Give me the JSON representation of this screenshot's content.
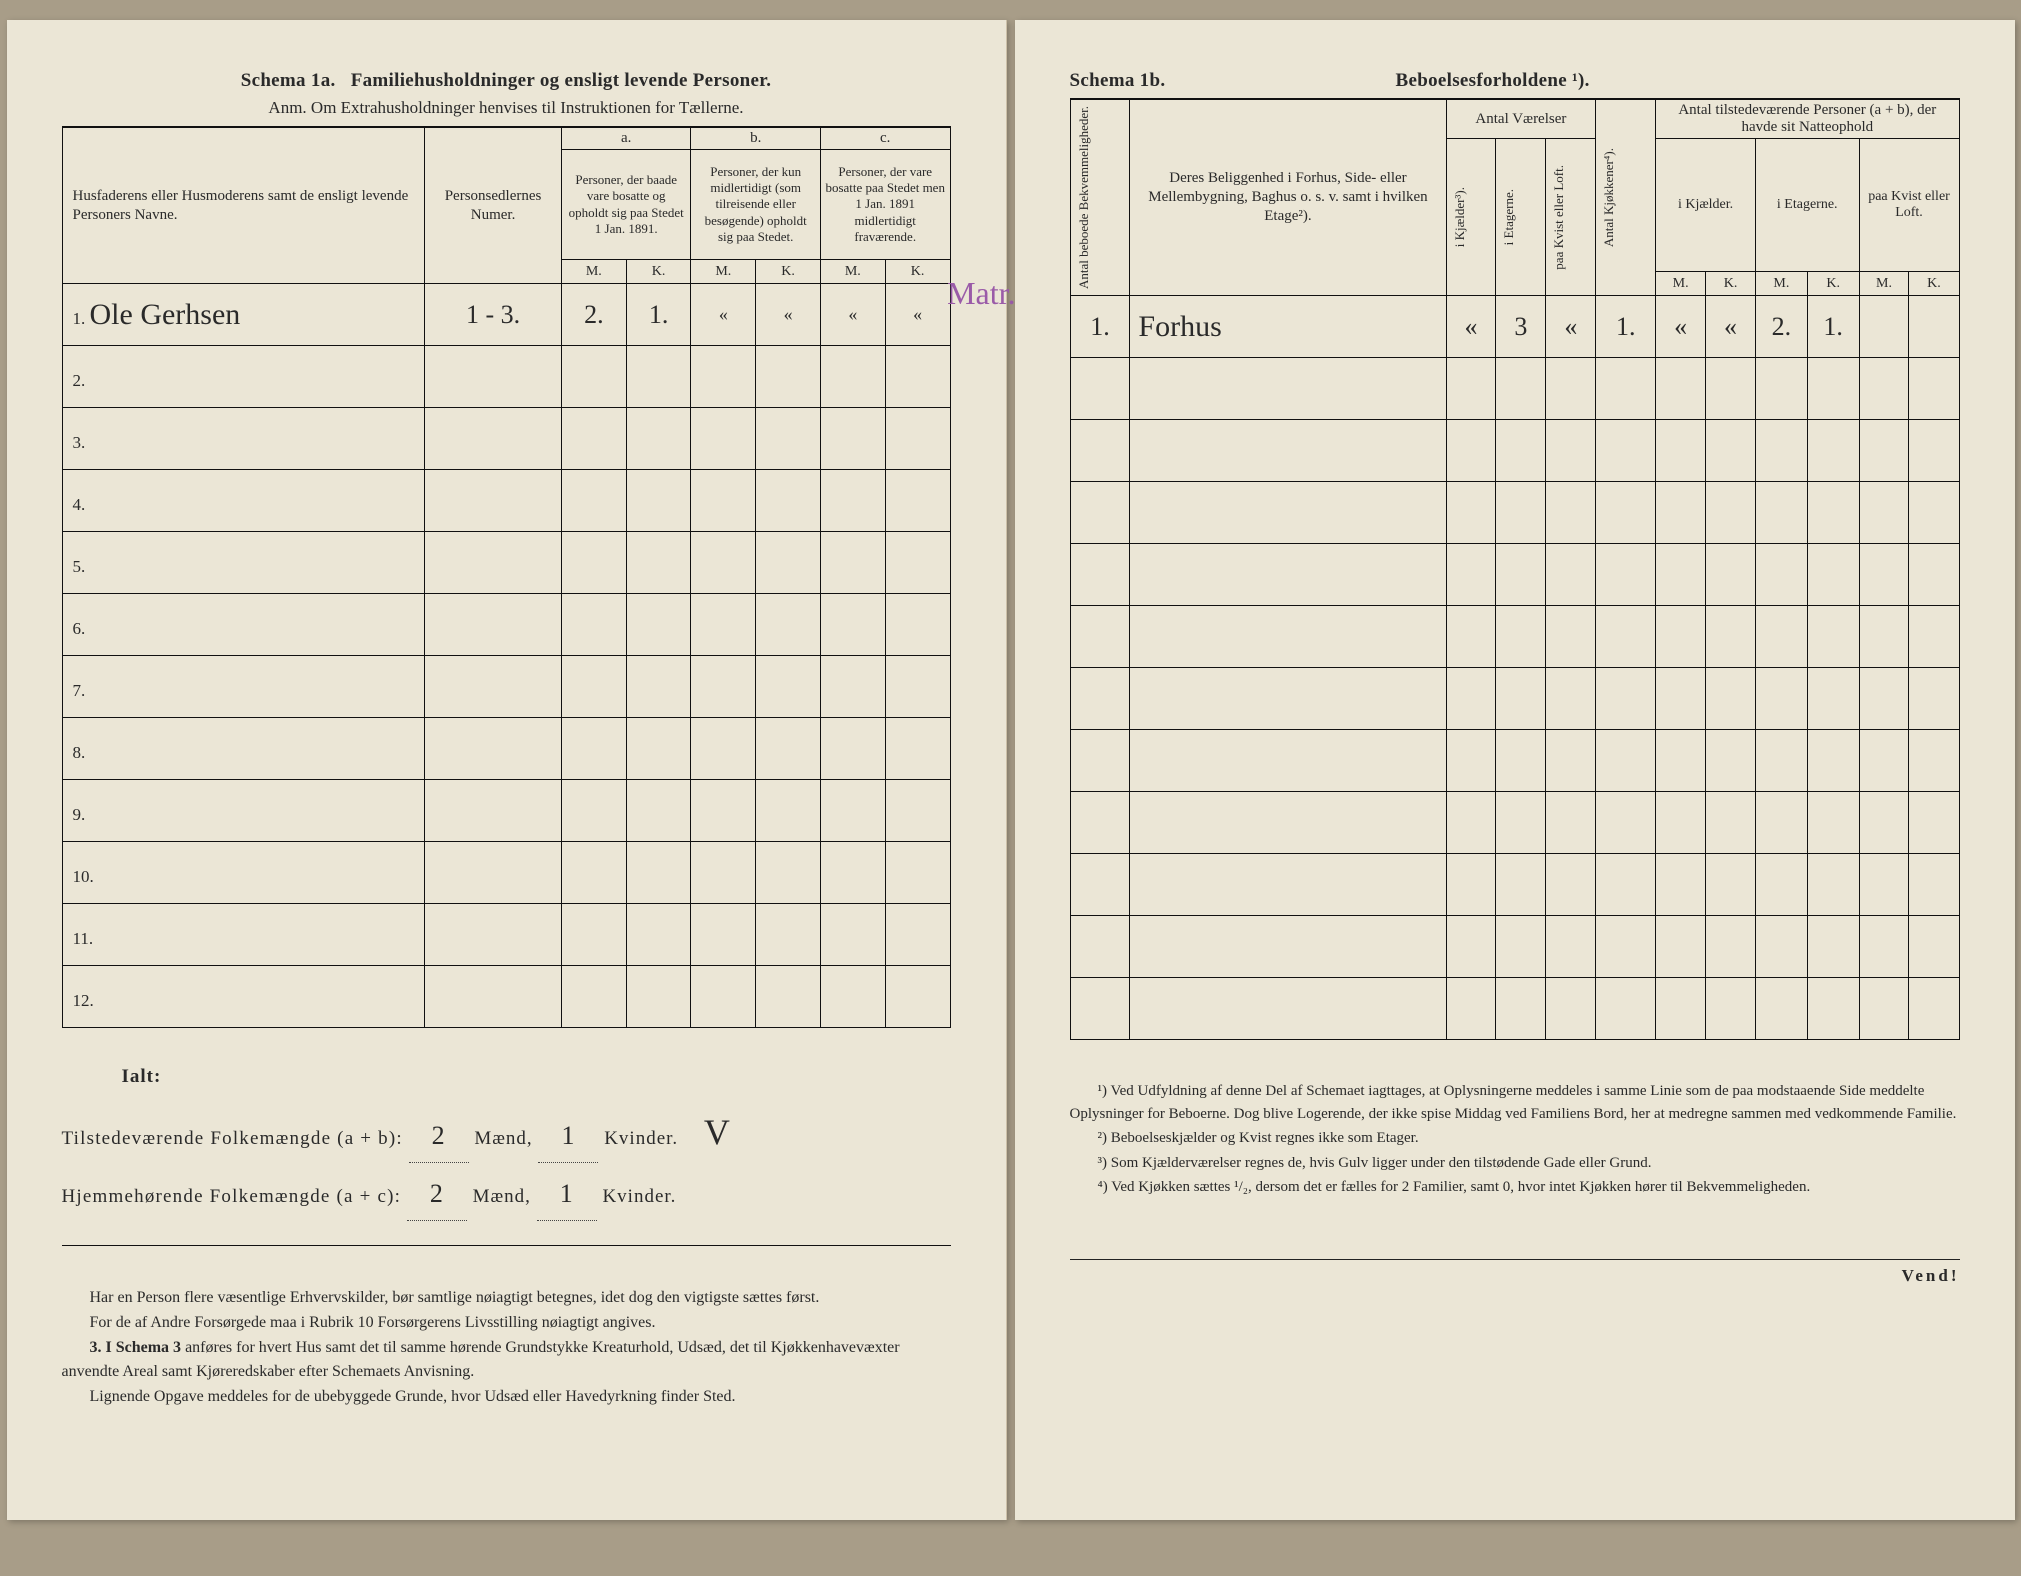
{
  "left": {
    "schema_label": "Schema 1a.",
    "schema_title": "Familiehusholdninger og ensligt levende Personer.",
    "anm": "Anm. Om Extrahusholdninger henvises til Instruktionen for Tællerne.",
    "col_name": "Husfaderens eller Husmoderens samt de ensligt levende Personers Navne.",
    "col_person": "Personsedlernes Numer.",
    "col_a_label": "a.",
    "col_a": "Personer, der baade vare bosatte og opholdt sig paa Stedet 1 Jan. 1891.",
    "col_b_label": "b.",
    "col_b": "Personer, der kun midlertidigt (som tilreisende eller besøgende) opholdt sig paa Stedet.",
    "col_c_label": "c.",
    "col_c": "Personer, der vare bosatte paa Stedet men 1 Jan. 1891 midlertidigt fraværende.",
    "mk_m": "M.",
    "mk_k": "K.",
    "rows": [
      {
        "n": "1.",
        "name": "Ole Gerhsen",
        "pers": "1 - 3.",
        "am": "2.",
        "ak": "1.",
        "bm": "«",
        "bk": "«",
        "cm": "«",
        "ck": "«"
      },
      {
        "n": "2."
      },
      {
        "n": "3."
      },
      {
        "n": "4."
      },
      {
        "n": "5."
      },
      {
        "n": "6."
      },
      {
        "n": "7."
      },
      {
        "n": "8."
      },
      {
        "n": "9."
      },
      {
        "n": "10."
      },
      {
        "n": "11."
      },
      {
        "n": "12."
      }
    ],
    "margin_word": "Matr.",
    "ialt": "Ialt:",
    "tilstede_label": "Tilstedeværende Folkemængde (a + b):",
    "hjemme_label": "Hjemmehørende Folkemængde (a + c):",
    "maend": "Mænd,",
    "kvinder": "Kvinder.",
    "val_tm": "2",
    "val_tk": "1",
    "val_hm": "2",
    "val_hk": "1",
    "notes1": "Har en Person flere væsentlige Erhvervskilder, bør samtlige nøiagtigt betegnes, idet dog den vigtigste sættes først.",
    "notes2": "For de af Andre Forsørgede maa i Rubrik 10 Forsørgerens Livsstilling nøiagtigt angives.",
    "notes3_lead": "3. I Schema 3",
    "notes3": " anføres for hvert Hus samt det til samme hørende Grundstykke Kreaturhold, Udsæd, det til Kjøkkenhavevæxter anvendte Areal samt Kjøreredskaber efter Schemaets Anvisning.",
    "notes4": "Lignende Opgave meddeles for de ubebyggede Grunde, hvor Udsæd eller Havedyrkning finder Sted."
  },
  "right": {
    "schema_label": "Schema 1b.",
    "schema_title": "Beboelsesforholdene ¹).",
    "col_antal_beb": "Antal beboede Bekvemmeligheder.",
    "col_belig": "Deres Beliggenhed i Forhus, Side- eller Mellembygning, Baghus o. s. v. samt i hvilken Etage²).",
    "grp_vaer": "Antal Værelser",
    "col_kjaelder": "i Kjælder³).",
    "col_etagerne": "i Etagerne.",
    "col_kvist": "paa Kvist eller Loft.",
    "col_kjokken": "Antal Kjøkkener⁴).",
    "grp_pers": "Antal tilstedeværende Personer (a + b), der havde sit Natteophold",
    "sub_kjael": "i Kjælder.",
    "sub_etag": "i Etagerne.",
    "sub_kvist": "paa Kvist eller Loft.",
    "mk_m": "M.",
    "mk_k": "K.",
    "row1": {
      "ab": "1.",
      "belig": "Forhus",
      "kj": "«",
      "et": "3",
      "kv": "«",
      "ko": "1.",
      "km": "«",
      "kk": "«",
      "em": "2.",
      "ek": "1.",
      "vm": "",
      "vk": ""
    },
    "fn1": "¹) Ved Udfyldning af denne Del af Schemaet iagttages, at Oplysningerne meddeles i samme Linie som de paa modstaaende Side meddelte Oplysninger for Beboerne. Dog blive Logerende, der ikke spise Middag ved Familiens Bord, her at medregne sammen med vedkommende Familie.",
    "fn2": "²) Beboelseskjælder og Kvist regnes ikke som Etager.",
    "fn3": "³) Som Kjælderværelser regnes de, hvis Gulv ligger under den tilstødende Gade eller Grund.",
    "fn4": "⁴) Ved Kjøkken sættes ¹/₂, dersom det er fælles for 2 Familier, samt 0, hvor intet Kjøkken hører til Bekvemmeligheden.",
    "vend": "Vend!"
  }
}
